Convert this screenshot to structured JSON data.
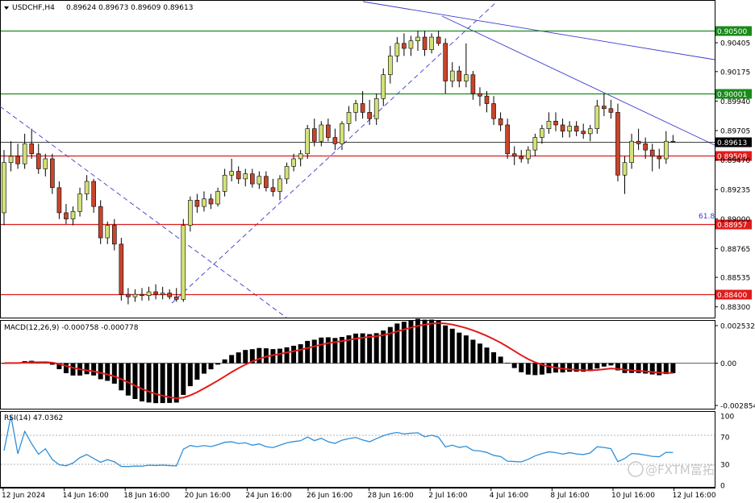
{
  "header": {
    "symbol": "USDCHF,H4",
    "ohlc": "0.89624 0.89673 0.89609 0.89613",
    "menu_arrow": "triangle-down-icon"
  },
  "watermark": {
    "text": "@FXTM富拓",
    "icon": "fxtm-logo-icon"
  },
  "colors": {
    "bull": "#d4e27a",
    "bear": "#c8452c",
    "wick": "#000000",
    "support_line": "#e01b1b",
    "resistance_line": "#1a8a1a",
    "trend_line": "#3a3acc",
    "macd_signal": "#e01b1b",
    "macd_hist": "#000000",
    "rsi": "#2f8fd8"
  },
  "chart_data": [
    {
      "type": "candlestick",
      "name": "main",
      "ylim": [
        0.8824,
        0.9072
      ],
      "y_ticks": [
        "0.90405",
        "0.90175",
        "0.89940",
        "0.89705",
        "0.89470",
        "0.89235",
        "0.89000",
        "0.88765",
        "0.88535",
        "0.88300"
      ],
      "y_tick_values": [
        0.90405,
        0.90175,
        0.8994,
        0.89705,
        0.8947,
        0.89235,
        0.89,
        0.88765,
        0.88535,
        0.883
      ],
      "levels": [
        {
          "label": "0.90500",
          "value": 0.905,
          "kind": "resistance"
        },
        {
          "label": "0.90001",
          "value": 0.90001,
          "kind": "resistance"
        },
        {
          "label": "0.89613",
          "value": 0.89613,
          "kind": "current"
        },
        {
          "label": "0.89508",
          "value": 0.89508,
          "kind": "support"
        },
        {
          "label": "0.88957",
          "value": 0.88957,
          "kind": "support"
        },
        {
          "label": "0.88400",
          "value": 0.884,
          "kind": "support"
        }
      ],
      "fib_label": "61.8",
      "x_ticks": [
        "12 Jun 2024",
        "14 Jun 16:00",
        "18 Jun 16:00",
        "20 Jun 16:00",
        "24 Jun 16:00",
        "26 Jun 16:00",
        "28 Jun 16:00",
        "2 Jul 16:00",
        "4 Jul 16:00",
        "8 Jul 16:00",
        "10 Jul 16:00",
        "12 Jul 16:00"
      ],
      "candles": [
        [
          0.8905,
          0.8955,
          0.8895,
          0.8945
        ],
        [
          0.8945,
          0.8962,
          0.8938,
          0.895
        ],
        [
          0.895,
          0.896,
          0.894,
          0.8944
        ],
        [
          0.8944,
          0.8968,
          0.894,
          0.896
        ],
        [
          0.896,
          0.8972,
          0.8948,
          0.8952
        ],
        [
          0.8952,
          0.896,
          0.8936,
          0.894
        ],
        [
          0.894,
          0.8952,
          0.8934,
          0.8948
        ],
        [
          0.8948,
          0.8952,
          0.892,
          0.8925
        ],
        [
          0.8925,
          0.893,
          0.89,
          0.8905
        ],
        [
          0.8905,
          0.8912,
          0.8896,
          0.89
        ],
        [
          0.89,
          0.891,
          0.8895,
          0.8906
        ],
        [
          0.8906,
          0.8925,
          0.8902,
          0.892
        ],
        [
          0.892,
          0.8935,
          0.8915,
          0.893
        ],
        [
          0.893,
          0.8932,
          0.8905,
          0.891
        ],
        [
          0.891,
          0.8915,
          0.888,
          0.8885
        ],
        [
          0.8885,
          0.8898,
          0.888,
          0.8895
        ],
        [
          0.8895,
          0.89,
          0.8875,
          0.888
        ],
        [
          0.888,
          0.8885,
          0.8835,
          0.884
        ],
        [
          0.884,
          0.8845,
          0.8832,
          0.8838
        ],
        [
          0.8838,
          0.8844,
          0.8834,
          0.884
        ],
        [
          0.884,
          0.8845,
          0.8835,
          0.8839
        ],
        [
          0.8839,
          0.8846,
          0.8835,
          0.8842
        ],
        [
          0.8842,
          0.8848,
          0.8836,
          0.884
        ],
        [
          0.884,
          0.8846,
          0.8836,
          0.8841
        ],
        [
          0.8841,
          0.8844,
          0.8836,
          0.8838
        ],
        [
          0.8838,
          0.8845,
          0.8834,
          0.8836
        ],
        [
          0.8836,
          0.89,
          0.8834,
          0.8895
        ],
        [
          0.8895,
          0.8918,
          0.889,
          0.8915
        ],
        [
          0.8915,
          0.892,
          0.8905,
          0.891
        ],
        [
          0.891,
          0.8922,
          0.8906,
          0.8916
        ],
        [
          0.8916,
          0.892,
          0.8908,
          0.8912
        ],
        [
          0.8912,
          0.8925,
          0.891,
          0.8922
        ],
        [
          0.8922,
          0.894,
          0.8918,
          0.8935
        ],
        [
          0.8935,
          0.8948,
          0.893,
          0.8938
        ],
        [
          0.8938,
          0.8942,
          0.8928,
          0.8932
        ],
        [
          0.8932,
          0.894,
          0.8926,
          0.8936
        ],
        [
          0.8936,
          0.894,
          0.8925,
          0.8928
        ],
        [
          0.8928,
          0.8938,
          0.8924,
          0.8934
        ],
        [
          0.8934,
          0.8938,
          0.8922,
          0.8925
        ],
        [
          0.8925,
          0.8932,
          0.8918,
          0.8922
        ],
        [
          0.8922,
          0.8935,
          0.8915,
          0.8932
        ],
        [
          0.8932,
          0.8945,
          0.8928,
          0.8942
        ],
        [
          0.8942,
          0.8952,
          0.8938,
          0.8948
        ],
        [
          0.8948,
          0.8955,
          0.8942,
          0.8952
        ],
        [
          0.8952,
          0.8975,
          0.8948,
          0.8972
        ],
        [
          0.8972,
          0.898,
          0.8958,
          0.8962
        ],
        [
          0.8962,
          0.8978,
          0.8958,
          0.8975
        ],
        [
          0.8975,
          0.898,
          0.8962,
          0.8965
        ],
        [
          0.8965,
          0.8972,
          0.8955,
          0.896
        ],
        [
          0.896,
          0.8978,
          0.8955,
          0.8976
        ],
        [
          0.8976,
          0.899,
          0.897,
          0.8985
        ],
        [
          0.8985,
          0.8995,
          0.8978,
          0.8992
        ],
        [
          0.8992,
          0.9002,
          0.898,
          0.8985
        ],
        [
          0.8985,
          0.8995,
          0.8975,
          0.898
        ],
        [
          0.898,
          0.9,
          0.8975,
          0.8996
        ],
        [
          0.8996,
          0.902,
          0.899,
          0.9015
        ],
        [
          0.9015,
          0.9038,
          0.9008,
          0.903
        ],
        [
          0.903,
          0.9045,
          0.9025,
          0.904
        ],
        [
          0.904,
          0.9048,
          0.903,
          0.9036
        ],
        [
          0.9036,
          0.9046,
          0.903,
          0.9042
        ],
        [
          0.9042,
          0.905,
          0.9034,
          0.9045
        ],
        [
          0.9045,
          0.905,
          0.903,
          0.9035
        ],
        [
          0.9035,
          0.9048,
          0.9032,
          0.9045
        ],
        [
          0.9045,
          0.905,
          0.9038,
          0.904
        ],
        [
          0.904,
          0.9044,
          0.9,
          0.901
        ],
        [
          0.901,
          0.9025,
          0.9005,
          0.9018
        ],
        [
          0.9018,
          0.9022,
          0.9005,
          0.901
        ],
        [
          0.901,
          0.904,
          0.9005,
          0.9015
        ],
        [
          0.9015,
          0.9018,
          0.8995,
          0.9
        ],
        [
          0.9,
          0.9005,
          0.899,
          0.8998
        ],
        [
          0.8998,
          0.9002,
          0.8985,
          0.8992
        ],
        [
          0.8992,
          0.8998,
          0.8975,
          0.898
        ],
        [
          0.898,
          0.8985,
          0.897,
          0.8975
        ],
        [
          0.8975,
          0.898,
          0.8948,
          0.8952
        ],
        [
          0.8952,
          0.8958,
          0.8943,
          0.895
        ],
        [
          0.895,
          0.8955,
          0.8945,
          0.8948
        ],
        [
          0.8948,
          0.8958,
          0.8944,
          0.8955
        ],
        [
          0.8955,
          0.8968,
          0.895,
          0.8965
        ],
        [
          0.8965,
          0.8975,
          0.896,
          0.8972
        ],
        [
          0.8972,
          0.8985,
          0.8968,
          0.8978
        ],
        [
          0.8978,
          0.8985,
          0.897,
          0.8975
        ],
        [
          0.8975,
          0.898,
          0.8965,
          0.897
        ],
        [
          0.897,
          0.8978,
          0.8965,
          0.8974
        ],
        [
          0.8974,
          0.8978,
          0.8966,
          0.897
        ],
        [
          0.897,
          0.8976,
          0.8964,
          0.8968
        ],
        [
          0.8968,
          0.8975,
          0.8962,
          0.8972
        ],
        [
          0.8972,
          0.8995,
          0.8968,
          0.899
        ],
        [
          0.899,
          0.9,
          0.8982,
          0.8988
        ],
        [
          0.8988,
          0.8995,
          0.898,
          0.8985
        ],
        [
          0.8985,
          0.8992,
          0.893,
          0.8935
        ],
        [
          0.8935,
          0.895,
          0.892,
          0.8945
        ],
        [
          0.8945,
          0.8968,
          0.894,
          0.8962
        ],
        [
          0.8962,
          0.8972,
          0.8955,
          0.896
        ],
        [
          0.896,
          0.8965,
          0.8948,
          0.8955
        ],
        [
          0.8955,
          0.896,
          0.8938,
          0.895
        ],
        [
          0.895,
          0.8956,
          0.894,
          0.8948
        ],
        [
          0.8948,
          0.897,
          0.8944,
          0.8962
        ],
        [
          0.8962,
          0.8967,
          0.8961,
          0.89613
        ]
      ]
    },
    {
      "type": "macd",
      "title": "MACD(12,26,9) -0.000758 -0.000778",
      "ylim": [
        -0.002854,
        0.002532
      ],
      "y_ticks": [
        "0.002532",
        "0.00",
        "-0.002854"
      ],
      "y_tick_values": [
        0.002532,
        0.0,
        -0.002854
      ]
    },
    {
      "type": "rsi",
      "title": "RSI(14) 47.0362",
      "ylim": [
        0,
        100
      ],
      "y_ticks": [
        "100",
        "70",
        "30",
        "0"
      ],
      "y_tick_values": [
        100,
        70,
        30,
        0
      ]
    }
  ]
}
